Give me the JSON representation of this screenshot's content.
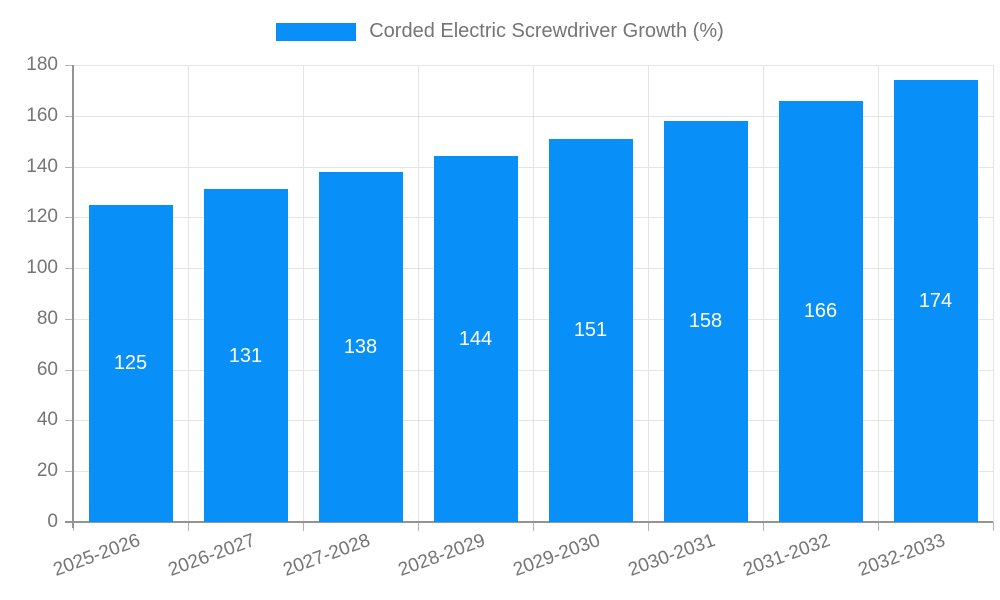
{
  "chart_data": {
    "type": "bar",
    "title": "Corded Electric Screwdriver Growth (%)",
    "legend_position": "top",
    "categories": [
      "2025-2026",
      "2026-2027",
      "2027-2028",
      "2028-2029",
      "2029-2030",
      "2030-2031",
      "2031-2032",
      "2032-2033"
    ],
    "series": [
      {
        "name": "Corded Electric Screwdriver Growth (%)",
        "values": [
          125,
          131,
          138,
          144,
          151,
          158,
          166,
          174
        ]
      }
    ],
    "value_labels": [
      "125",
      "131",
      "138",
      "144",
      "151",
      "158",
      "166",
      "174"
    ],
    "xlabel": "",
    "ylabel": "",
    "ylim": [
      0,
      180
    ],
    "yticks": [
      0,
      20,
      40,
      60,
      80,
      100,
      120,
      140,
      160,
      180
    ],
    "grid": true,
    "x_label_rotation_deg": -20,
    "colors": {
      "bar": "#0990f8",
      "value_label": "#ffffff",
      "axis_text": "#757575",
      "axis_line": "#949494",
      "grid_line": "#e4e4e4",
      "tick": "#b5b5b5",
      "background": "#ffffff"
    }
  }
}
